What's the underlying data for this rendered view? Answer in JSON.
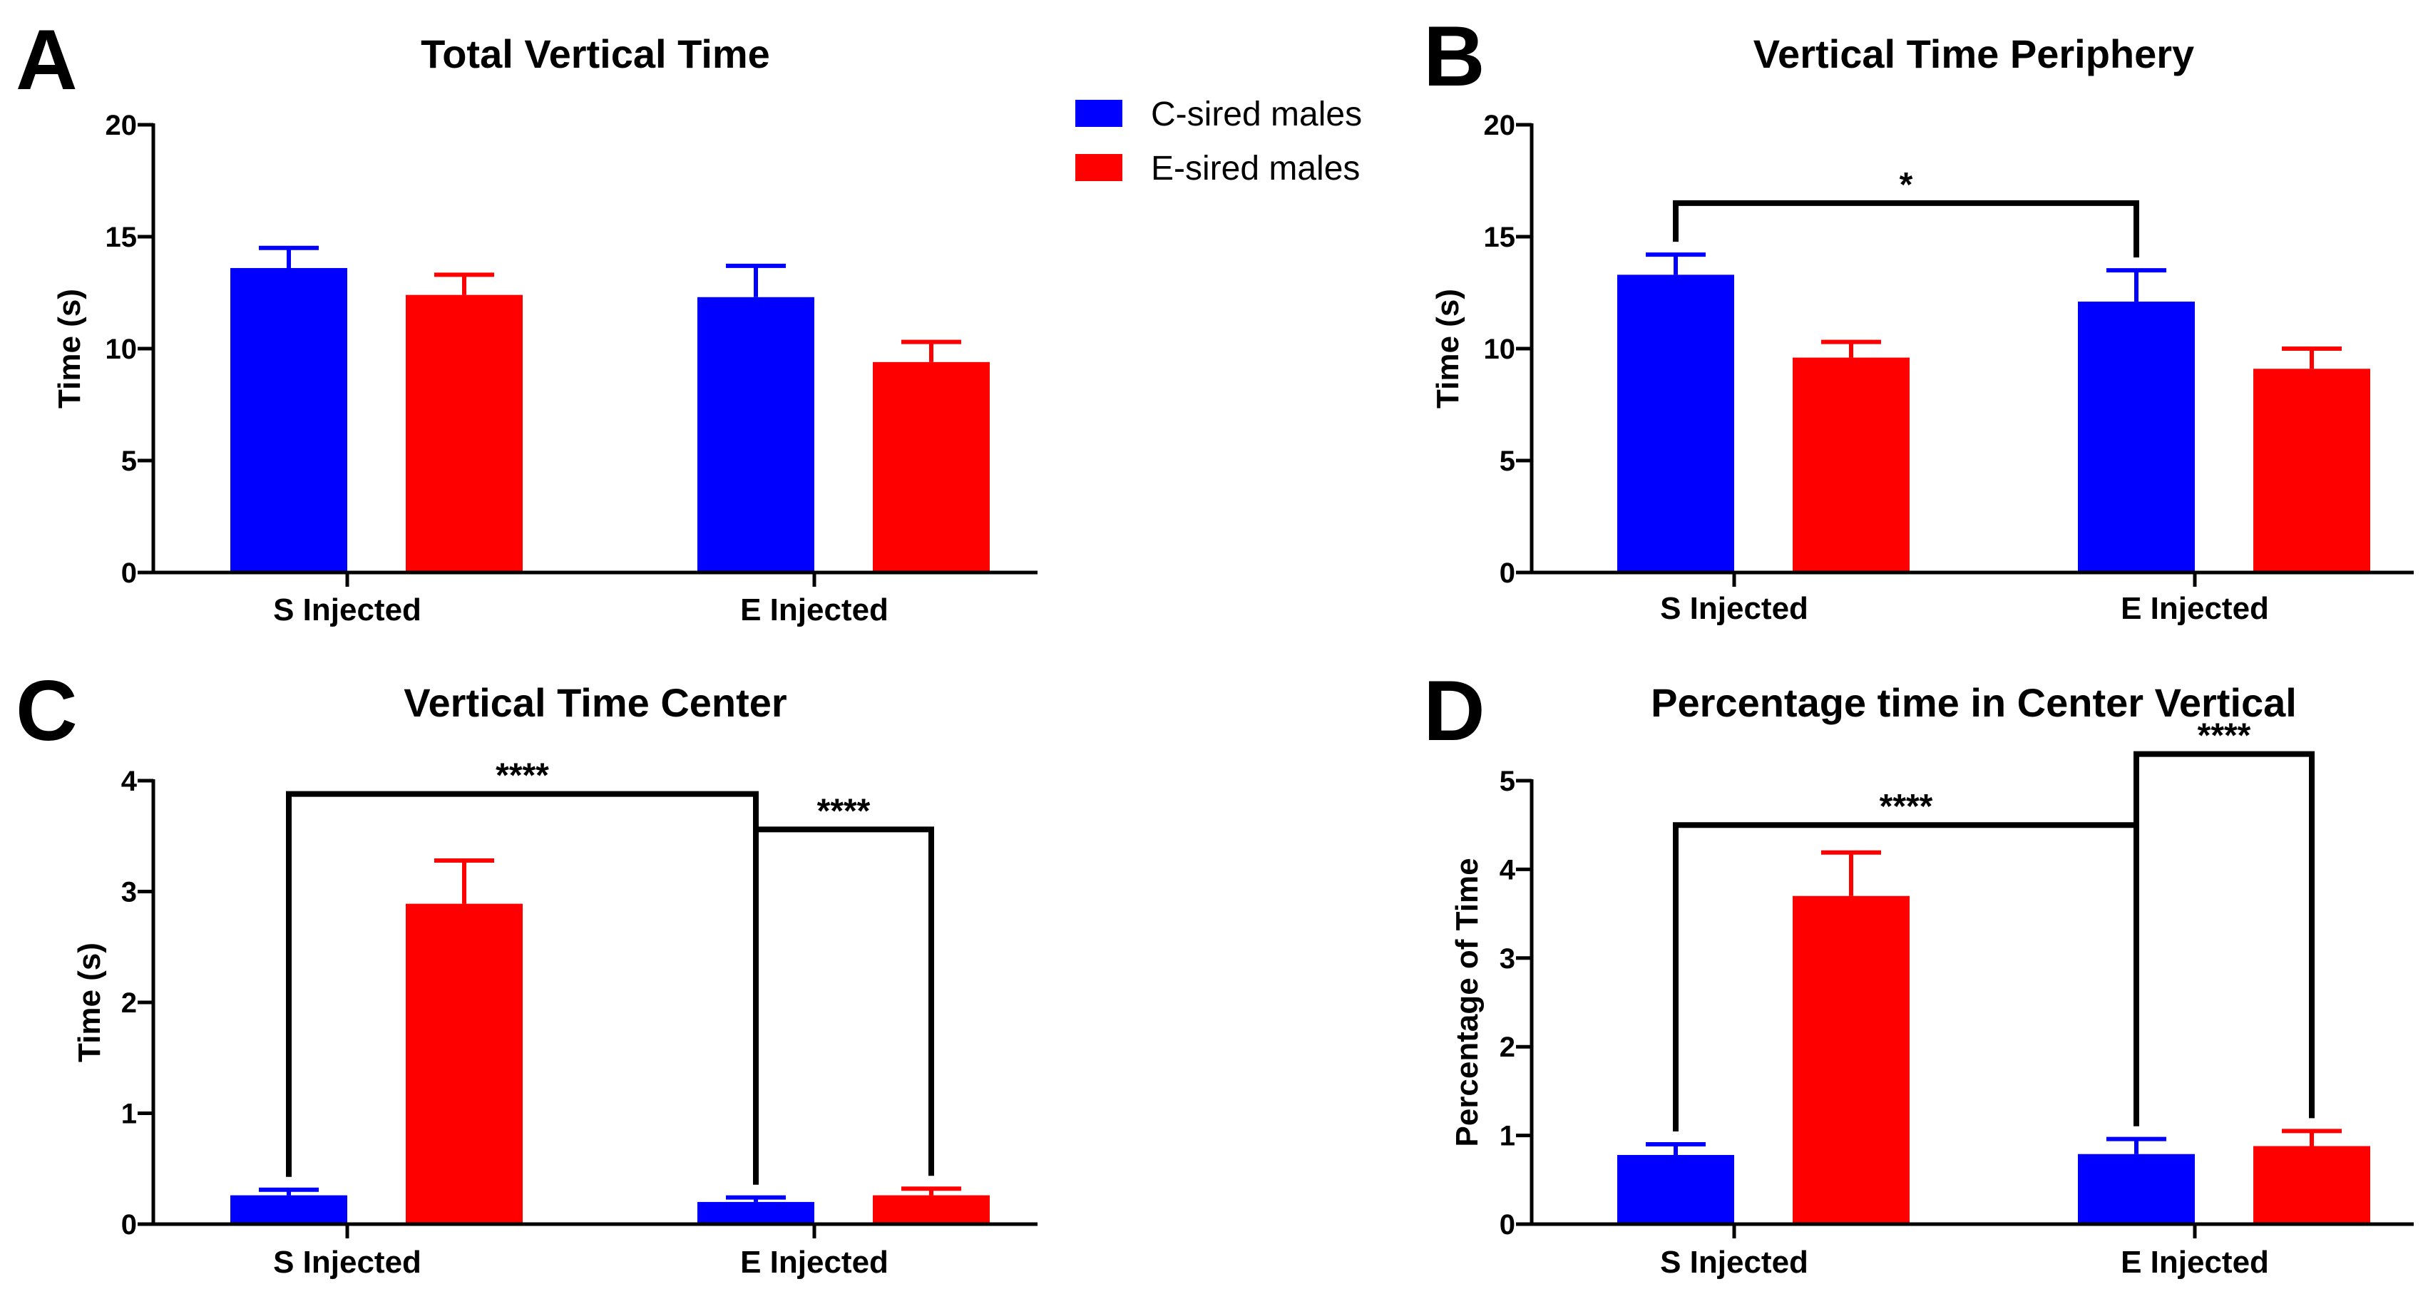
{
  "legend": {
    "items": [
      {
        "label": "C-sired males",
        "color": "#0000ff"
      },
      {
        "label": "E-sired males",
        "color": "#ff0000"
      }
    ]
  },
  "chart_data": [
    {
      "panel": "A",
      "type": "bar",
      "title": "Total Vertical Time",
      "ylabel": "Time (s)",
      "xlabel": "",
      "ylim": [
        0,
        20
      ],
      "yticks": [
        0,
        5,
        10,
        15,
        20
      ],
      "categories": [
        "S Injected",
        "E Injected"
      ],
      "series": [
        {
          "name": "C-sired males",
          "color": "#0000ff",
          "values": [
            13.6,
            12.3
          ],
          "errors": [
            0.9,
            1.4
          ]
        },
        {
          "name": "E-sired males",
          "color": "#ff0000",
          "values": [
            12.4,
            9.4
          ],
          "errors": [
            0.9,
            0.9
          ]
        }
      ],
      "significance": []
    },
    {
      "panel": "B",
      "type": "bar",
      "title": "Vertical Time Periphery",
      "ylabel": "Time (s)",
      "xlabel": "",
      "ylim": [
        0,
        20
      ],
      "yticks": [
        0,
        5,
        10,
        15,
        20
      ],
      "categories": [
        "S Injected",
        "E Injected"
      ],
      "series": [
        {
          "name": "C-sired males",
          "color": "#0000ff",
          "values": [
            13.3,
            12.1
          ],
          "errors": [
            0.9,
            1.4
          ]
        },
        {
          "name": "E-sired males",
          "color": "#ff0000",
          "values": [
            9.6,
            9.1
          ],
          "errors": [
            0.7,
            0.9
          ]
        }
      ],
      "significance": [
        {
          "from": [
            0,
            0
          ],
          "to": [
            0,
            1
          ],
          "label": "*",
          "level": 16.5
        }
      ]
    },
    {
      "panel": "C",
      "type": "bar",
      "title": "Vertical Time Center",
      "ylabel": "Time (s)",
      "xlabel": "",
      "ylim": [
        0,
        4
      ],
      "yticks": [
        0,
        1,
        2,
        3,
        4
      ],
      "categories": [
        "S Injected",
        "E Injected"
      ],
      "series": [
        {
          "name": "C-sired males",
          "color": "#0000ff",
          "values": [
            0.26,
            0.2
          ],
          "errors": [
            0.05,
            0.04
          ]
        },
        {
          "name": "E-sired males",
          "color": "#ff0000",
          "values": [
            2.89,
            0.26
          ],
          "errors": [
            0.39,
            0.06
          ]
        }
      ],
      "significance": [
        {
          "from": [
            0,
            0
          ],
          "to": [
            0,
            1
          ],
          "label": "****",
          "level": 3.88
        },
        {
          "from": [
            0,
            1
          ],
          "to": [
            1,
            1
          ],
          "label": "****",
          "level": 3.56
        }
      ]
    },
    {
      "panel": "D",
      "type": "bar",
      "title": "Percentage time in Center Vertical",
      "ylabel": "Percentage of Time",
      "xlabel": "",
      "ylim": [
        0,
        5
      ],
      "yticks": [
        0,
        1,
        2,
        3,
        4,
        5
      ],
      "categories": [
        "S Injected",
        "E Injected"
      ],
      "series": [
        {
          "name": "C-sired males",
          "color": "#0000ff",
          "values": [
            0.78,
            0.79
          ],
          "errors": [
            0.12,
            0.17
          ]
        },
        {
          "name": "E-sired males",
          "color": "#ff0000",
          "values": [
            3.7,
            0.88
          ],
          "errors": [
            0.49,
            0.17
          ]
        }
      ],
      "significance": [
        {
          "from": [
            0,
            0
          ],
          "to": [
            0,
            1
          ],
          "label": "****",
          "level": 4.5
        },
        {
          "from": [
            0,
            1
          ],
          "to": [
            1,
            1
          ],
          "label": "****",
          "level": 5.3
        }
      ]
    }
  ]
}
